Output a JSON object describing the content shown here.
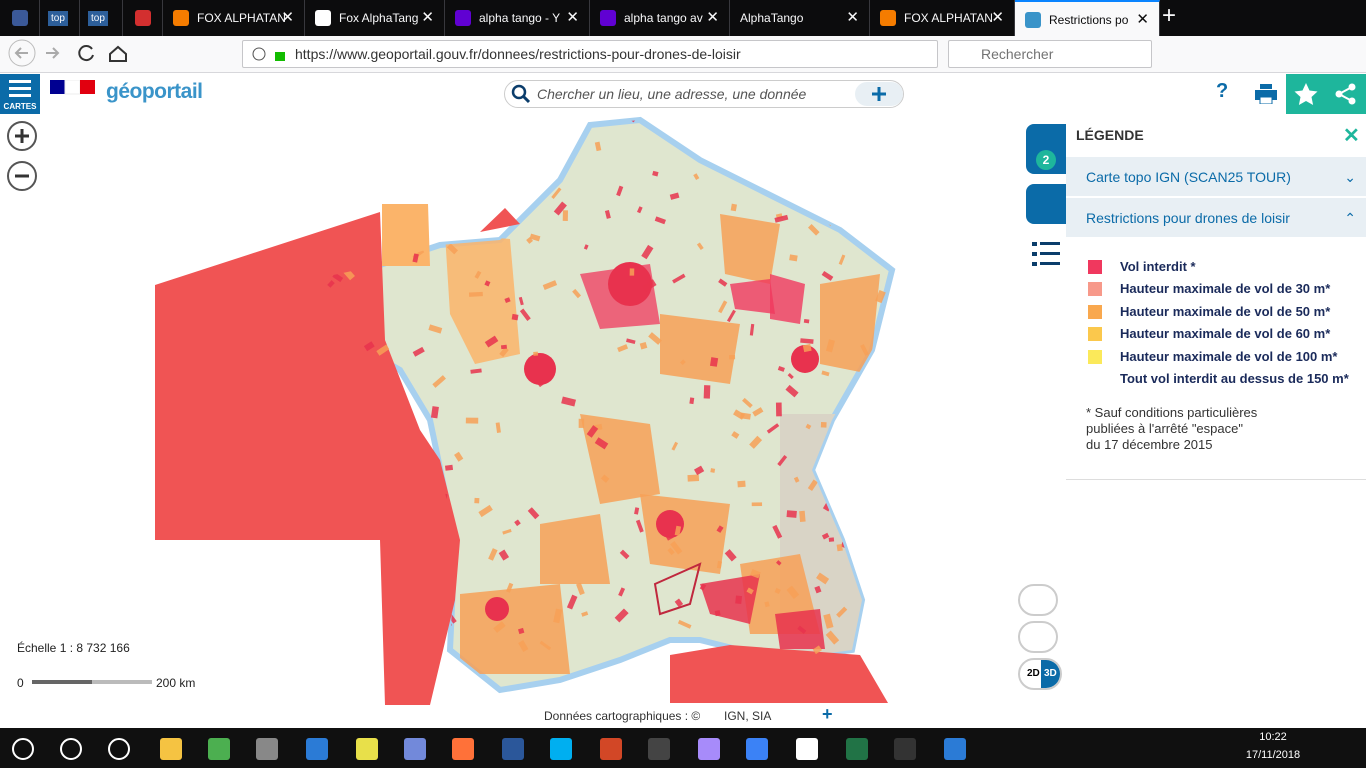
{
  "browser": {
    "tabs": [
      "top",
      "top",
      "FOX ALPHATAN",
      "Fox AlphaTang",
      "alpha tango - Y",
      "alpha tango av",
      "AlphaTango",
      "FOX ALPHATAN",
      "Restrictions po"
    ],
    "url": "https://www.geoportail.gouv.fr/donnees/restrictions-pour-drones-de-loisir",
    "search_placeholder": "Rechercher"
  },
  "header": {
    "menu_label": "CARTES",
    "logo": "géoportail",
    "search_placeholder": "Chercher un lieu, une adresse, une donnée",
    "help": "?"
  },
  "layers_count": 2,
  "legend": {
    "title": "LÉGENDE",
    "layers": [
      "Carte topo IGN (SCAN25 TOUR)",
      "Restrictions pour drones de loisir"
    ],
    "items": [
      {
        "label": "Vol interdit *",
        "color": "#f0385e"
      },
      {
        "label": "Hauteur maximale de vol de 30 m*",
        "color": "#f7998a"
      },
      {
        "label": "Hauteur maximale de vol de 50 m*",
        "color": "#f9a84e"
      },
      {
        "label": "Hauteur maximale de vol de 60 m*",
        "color": "#fbc84c"
      },
      {
        "label": "Hauteur maximale de vol de 100 m*",
        "color": "#fbe95a"
      },
      {
        "label": "Tout vol interdit au dessus de 150 m*"
      }
    ],
    "note": [
      "* Sauf conditions particulières",
      "publiées à l'arrêté \"espace\"",
      "du 17 décembre 2015"
    ]
  },
  "map": {
    "scale": "Échelle 1 : 8 732 166",
    "scale_start": "0",
    "scale_end": "200 km",
    "attribution": "Données cartographiques : ©",
    "attribution_sources": "IGN, SIA",
    "view_2d": "2D",
    "view_3d": "3D"
  },
  "taskbar": {
    "time": "10:22",
    "date": "17/11/2018"
  }
}
